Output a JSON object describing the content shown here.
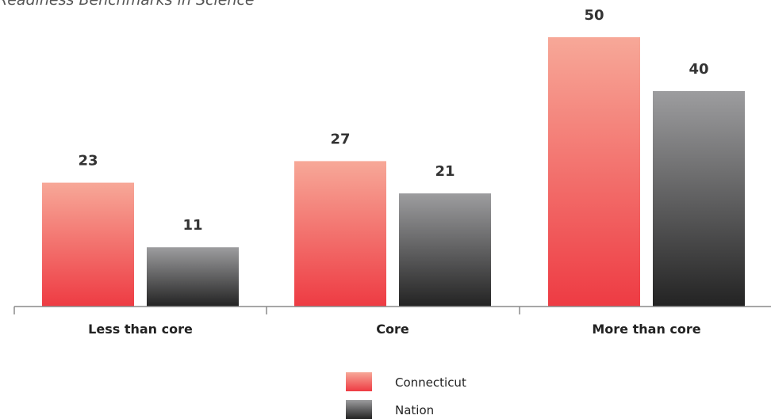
{
  "chart_data": {
    "type": "bar",
    "title": "Readiness Benchmarks in Science",
    "categories": [
      "Less than core",
      "Core",
      "More than core"
    ],
    "series": [
      {
        "name": "Connecticut",
        "values": [
          23,
          27,
          50
        ],
        "color_top": "#f7a898",
        "color_bottom": "#ee3b43"
      },
      {
        "name": "Nation",
        "values": [
          11,
          21,
          40
        ],
        "color_top": "#9d9d9f",
        "color_bottom": "#232323"
      }
    ],
    "ylim": [
      0,
      57
    ],
    "grid": false,
    "legend": "bottom-center"
  }
}
